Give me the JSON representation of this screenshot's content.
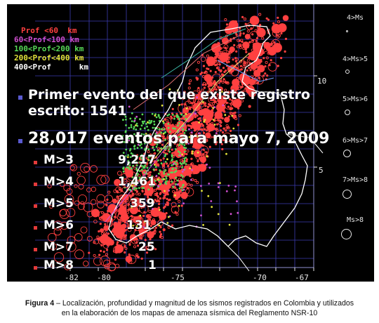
{
  "legend": [
    {
      "text": "Prof <60  km",
      "color": "#ff4040"
    },
    {
      "text": "60<Prof<100 km",
      "color": "#d04fd0"
    },
    {
      "text": "100<Prof<200 km",
      "color": "#57d957"
    },
    {
      "text": "200<Prof<400 km",
      "color": "#e3e33a"
    },
    {
      "text": "400<Prof      km",
      "color": "#ffffff"
    }
  ],
  "magnitude_legend": [
    {
      "label": "4>Ms"
    },
    {
      "label": "4>Ms>5"
    },
    {
      "label": "5>Ms>6"
    },
    {
      "label": "6>Ms>7"
    },
    {
      "label": "7>Ms>8"
    },
    {
      "label": "Ms>8"
    }
  ],
  "lat_labels": [
    "10",
    "5"
  ],
  "lon_labels": [
    "-82",
    "-80",
    "-75",
    "-70",
    "-67"
  ],
  "headline_1_line1": "Primer evento del que existe registro",
  "headline_1_line2": "escrito: 1541",
  "headline_2": "28,017 eventos para mayo 7, 2009",
  "stats": [
    {
      "label": "M>3",
      "value": "9,217"
    },
    {
      "label": "M>4",
      "value": "1,461"
    },
    {
      "label": "M>5",
      "value": "359"
    },
    {
      "label": "M>6",
      "value": "131"
    },
    {
      "label": "M>7",
      "value": "25"
    },
    {
      "label": "M>8",
      "value": "1"
    }
  ],
  "caption": {
    "prefix": "Figura 4",
    "line1": " – Localización, profundidad y magnitud de los sismos registrados en Colombia y utilizados",
    "line2": "en la elaboración de los mapas de amenaza sísmica del Reglamento NSR-10"
  },
  "colors": {
    "background": "#000000",
    "grid": "#3b3bb0",
    "outline": "#ffffff",
    "shallow": "#ff4040",
    "intermediate": "#57d957"
  }
}
